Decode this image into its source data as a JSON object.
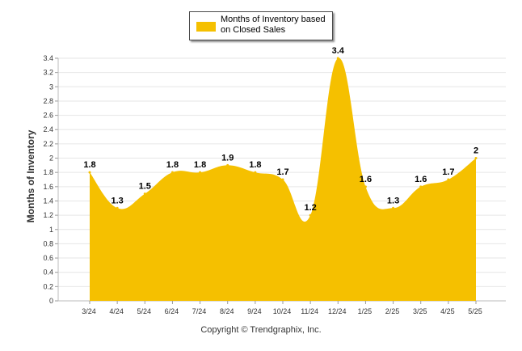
{
  "chart_data": {
    "type": "area",
    "categories": [
      "3/24",
      "4/24",
      "5/24",
      "6/24",
      "7/24",
      "8/24",
      "9/24",
      "10/24",
      "11/24",
      "12/24",
      "1/25",
      "2/25",
      "3/25",
      "4/25",
      "5/25"
    ],
    "series": [
      {
        "name": "Months of Inventory based on Closed Sales",
        "values": [
          1.8,
          1.3,
          1.5,
          1.8,
          1.8,
          1.9,
          1.8,
          1.7,
          1.2,
          3.4,
          1.6,
          1.3,
          1.6,
          1.7,
          2
        ],
        "labels": [
          "1.8",
          "1.3",
          "1.5",
          "1.8",
          "1.8",
          "1.9",
          "1.8",
          "1.7",
          "1.2",
          "3.4",
          "1.6",
          "1.3",
          "1.6",
          "1.7",
          "2"
        ]
      }
    ],
    "ylabel": "Months of Inventory",
    "xlabel": "",
    "ylim": [
      0,
      3.4
    ],
    "yticks": [
      "0",
      "0.2",
      "0.4",
      "0.6",
      "0.8",
      "1",
      "1.2",
      "1.4",
      "1.6",
      "1.8",
      "2",
      "2.2",
      "2.4",
      "2.6",
      "2.8",
      "3",
      "3.2",
      "3.4"
    ],
    "grid": true,
    "legend_position": "top-center",
    "colors": {
      "fill": "#f5c000",
      "text": "#000000",
      "axis": "#333333"
    }
  },
  "legend": {
    "label": "Months of Inventory based on Closed Sales"
  },
  "footer": {
    "copyright": "Copyright © Trendgraphix, Inc."
  }
}
